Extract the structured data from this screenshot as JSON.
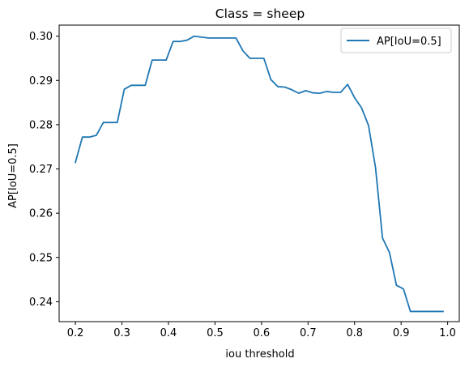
{
  "chart_data": {
    "type": "line",
    "title": "Class = sheep",
    "xlabel": "iou threshold",
    "ylabel": "AP[IoU=0.5]",
    "xlim": [
      0.165,
      1.025
    ],
    "ylim": [
      0.2355,
      0.3025
    ],
    "xticks": [
      "0.2",
      "0.3",
      "0.4",
      "0.5",
      "0.6",
      "0.7",
      "0.8",
      "0.9",
      "1.0"
    ],
    "yticks": [
      "0.24",
      "0.25",
      "0.26",
      "0.27",
      "0.28",
      "0.29",
      "0.30"
    ],
    "grid": false,
    "legend": {
      "placement": "top-right",
      "entries": [
        "AP[IoU=0.5]"
      ]
    },
    "series": [
      {
        "name": "AP[IoU=0.5]",
        "color": "#1f77b4",
        "x": [
          0.2,
          0.215,
          0.23,
          0.245,
          0.26,
          0.275,
          0.29,
          0.305,
          0.32,
          0.335,
          0.35,
          0.365,
          0.38,
          0.395,
          0.41,
          0.425,
          0.44,
          0.455,
          0.47,
          0.485,
          0.5,
          0.515,
          0.53,
          0.545,
          0.56,
          0.575,
          0.59,
          0.605,
          0.62,
          0.635,
          0.65,
          0.665,
          0.68,
          0.695,
          0.71,
          0.725,
          0.74,
          0.755,
          0.77,
          0.785,
          0.8,
          0.815,
          0.83,
          0.845,
          0.86,
          0.875,
          0.89,
          0.905,
          0.92,
          0.935,
          0.95,
          0.965,
          0.98,
          0.99
        ],
        "values": [
          0.2715,
          0.2772,
          0.2772,
          0.2776,
          0.2805,
          0.2805,
          0.2805,
          0.288,
          0.2889,
          0.2889,
          0.2889,
          0.2946,
          0.2946,
          0.2946,
          0.2988,
          0.2988,
          0.2991,
          0.3,
          0.2998,
          0.2996,
          0.2996,
          0.2996,
          0.2996,
          0.2996,
          0.2967,
          0.295,
          0.295,
          0.295,
          0.2902,
          0.2886,
          0.2885,
          0.2879,
          0.2871,
          0.2877,
          0.2872,
          0.2871,
          0.2875,
          0.2873,
          0.2873,
          0.2891,
          0.2861,
          0.2838,
          0.2798,
          0.2703,
          0.2544,
          0.2511,
          0.2437,
          0.2429,
          0.2378,
          0.2378,
          0.2378,
          0.2378,
          0.2378,
          0.2378
        ]
      }
    ]
  }
}
